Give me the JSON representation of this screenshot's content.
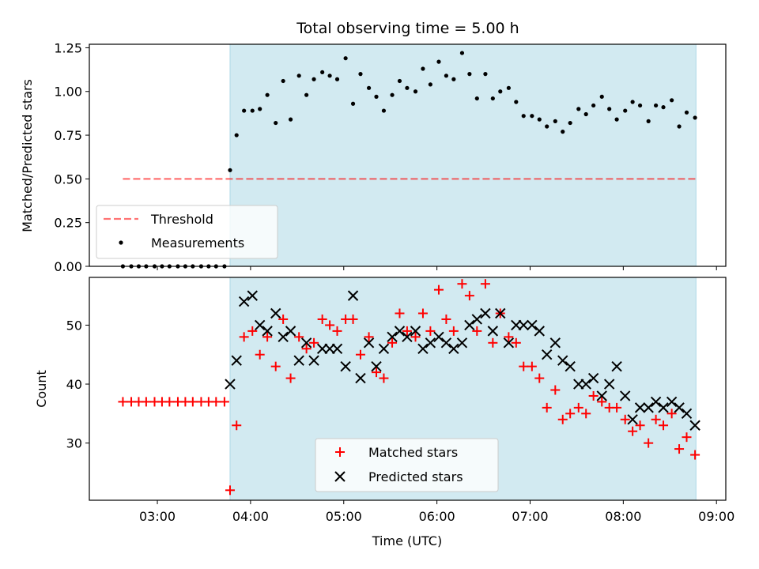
{
  "chart_data": {
    "title": "Total observing time = 5.00 h",
    "xlabel": "Time (UTC)",
    "x_tick_labels": [
      "03:00",
      "04:00",
      "05:00",
      "06:00",
      "07:00",
      "08:00",
      "09:00"
    ],
    "x_tick_hours": [
      3,
      4,
      5,
      6,
      7,
      8,
      9
    ],
    "xlim": [
      2.27,
      9.1
    ],
    "shaded_span": [
      3.78,
      8.78
    ],
    "colors": {
      "shade": "#add8e6",
      "threshold": "#ff0000",
      "matched": "#ff0000",
      "predicted": "#000000",
      "measurements": "#000000"
    },
    "panels": [
      {
        "type": "scatter",
        "ylabel": "Matched/Predicted stars",
        "ylim": [
          0,
          1.27
        ],
        "y_ticks": [
          0,
          0.25,
          0.5,
          0.75,
          1.0,
          1.25
        ],
        "y_tick_labels": [
          "0.00",
          "0.25",
          "0.50",
          "0.75",
          "1.00",
          "1.25"
        ],
        "legend": {
          "position": "lower-left",
          "entries": [
            "Threshold",
            "Measurements"
          ]
        },
        "threshold": {
          "name": "Threshold",
          "value": 0.5,
          "x_range": [
            2.63,
            8.78
          ],
          "style": "dashed"
        },
        "measurements": {
          "name": "Measurements",
          "x": [
            2.63,
            2.72,
            2.8,
            2.88,
            2.97,
            3.05,
            3.13,
            3.22,
            3.3,
            3.38,
            3.47,
            3.55,
            3.63,
            3.72,
            3.78,
            3.85,
            3.93,
            4.02,
            4.1,
            4.18,
            4.27,
            4.35,
            4.43,
            4.52,
            4.6,
            4.68,
            4.77,
            4.85,
            4.93,
            5.02,
            5.1,
            5.18,
            5.27,
            5.35,
            5.43,
            5.52,
            5.6,
            5.68,
            5.77,
            5.85,
            5.93,
            6.02,
            6.1,
            6.18,
            6.27,
            6.35,
            6.43,
            6.52,
            6.6,
            6.68,
            6.77,
            6.85,
            6.93,
            7.02,
            7.1,
            7.18,
            7.27,
            7.35,
            7.43,
            7.52,
            7.6,
            7.68,
            7.77,
            7.85,
            7.93,
            8.02,
            8.1,
            8.18,
            8.27,
            8.35,
            8.43,
            8.52,
            8.6,
            8.68,
            8.77
          ],
          "y": [
            0,
            0,
            0,
            0,
            0,
            0,
            0,
            0,
            0,
            0,
            0,
            0,
            0,
            0,
            0.55,
            0.75,
            0.89,
            0.89,
            0.9,
            0.98,
            0.82,
            1.06,
            0.84,
            1.09,
            0.98,
            1.07,
            1.11,
            1.09,
            1.07,
            1.19,
            0.93,
            1.1,
            1.02,
            0.97,
            0.89,
            0.98,
            1.06,
            1.02,
            1.0,
            1.13,
            1.04,
            1.17,
            1.09,
            1.07,
            1.22,
            1.1,
            0.96,
            1.1,
            0.96,
            1.0,
            1.02,
            0.94,
            0.86,
            0.86,
            0.84,
            0.8,
            0.83,
            0.77,
            0.82,
            0.9,
            0.87,
            0.92,
            0.97,
            0.9,
            0.84,
            0.89,
            0.94,
            0.92,
            0.83,
            0.92,
            0.91,
            0.95,
            0.8,
            0.88,
            0.85
          ]
        }
      },
      {
        "type": "scatter",
        "ylabel": "Count",
        "ylim": [
          20.3,
          58.1
        ],
        "y_ticks": [
          30,
          40,
          50
        ],
        "y_tick_labels": [
          "30",
          "40",
          "50"
        ],
        "legend": {
          "position": "lower-center",
          "entries": [
            "Matched stars",
            "Predicted stars"
          ]
        },
        "series": [
          {
            "name": "Matched stars",
            "marker": "+",
            "x": [
              2.63,
              2.72,
              2.8,
              2.88,
              2.97,
              3.05,
              3.13,
              3.22,
              3.3,
              3.38,
              3.47,
              3.55,
              3.63,
              3.72,
              3.78,
              3.85,
              3.93,
              4.02,
              4.1,
              4.18,
              4.27,
              4.35,
              4.43,
              4.52,
              4.6,
              4.68,
              4.77,
              4.85,
              4.93,
              5.02,
              5.1,
              5.18,
              5.27,
              5.35,
              5.43,
              5.52,
              5.6,
              5.68,
              5.77,
              5.85,
              5.93,
              6.02,
              6.1,
              6.18,
              6.27,
              6.35,
              6.43,
              6.52,
              6.6,
              6.68,
              6.77,
              6.85,
              6.93,
              7.02,
              7.1,
              7.18,
              7.27,
              7.35,
              7.43,
              7.52,
              7.6,
              7.68,
              7.77,
              7.85,
              7.93,
              8.02,
              8.1,
              8.18,
              8.27,
              8.35,
              8.43,
              8.52,
              8.6,
              8.68,
              8.77
            ],
            "y": [
              37,
              37,
              37,
              37,
              37,
              37,
              37,
              37,
              37,
              37,
              37,
              37,
              37,
              37,
              22,
              33,
              48,
              49,
              45,
              48,
              43,
              51,
              41,
              48,
              46,
              47,
              51,
              50,
              49,
              51,
              51,
              45,
              48,
              42,
              41,
              47,
              52,
              49,
              48,
              52,
              49,
              56,
              51,
              49,
              57,
              55,
              49,
              57,
              47,
              52,
              48,
              47,
              43,
              43,
              41,
              36,
              39,
              34,
              35,
              36,
              35,
              38,
              37,
              36,
              36,
              34,
              32,
              33,
              30,
              34,
              33,
              35,
              29,
              31,
              28
            ]
          },
          {
            "name": "Predicted stars",
            "marker": "x",
            "x": [
              3.78,
              3.85,
              3.93,
              4.02,
              4.1,
              4.18,
              4.27,
              4.35,
              4.43,
              4.52,
              4.6,
              4.68,
              4.77,
              4.85,
              4.93,
              5.02,
              5.1,
              5.18,
              5.27,
              5.35,
              5.43,
              5.52,
              5.6,
              5.68,
              5.77,
              5.85,
              5.93,
              6.02,
              6.1,
              6.18,
              6.27,
              6.35,
              6.43,
              6.52,
              6.6,
              6.68,
              6.77,
              6.85,
              6.93,
              7.02,
              7.1,
              7.18,
              7.27,
              7.35,
              7.43,
              7.52,
              7.6,
              7.68,
              7.77,
              7.85,
              7.93,
              8.02,
              8.1,
              8.18,
              8.27,
              8.35,
              8.43,
              8.52,
              8.6,
              8.68,
              8.77
            ],
            "y": [
              40,
              44,
              54,
              55,
              50,
              49,
              52,
              48,
              49,
              44,
              47,
              44,
              46,
              46,
              46,
              43,
              55,
              41,
              47,
              43,
              46,
              48,
              49,
              48,
              49,
              46,
              47,
              48,
              47,
              46,
              47,
              50,
              51,
              52,
              49,
              52,
              47,
              50,
              50,
              50,
              49,
              45,
              47,
              44,
              43,
              40,
              40,
              41,
              38,
              40,
              43,
              38,
              34,
              36,
              36,
              37,
              36,
              37,
              36,
              35,
              33
            ]
          }
        ]
      }
    ]
  }
}
